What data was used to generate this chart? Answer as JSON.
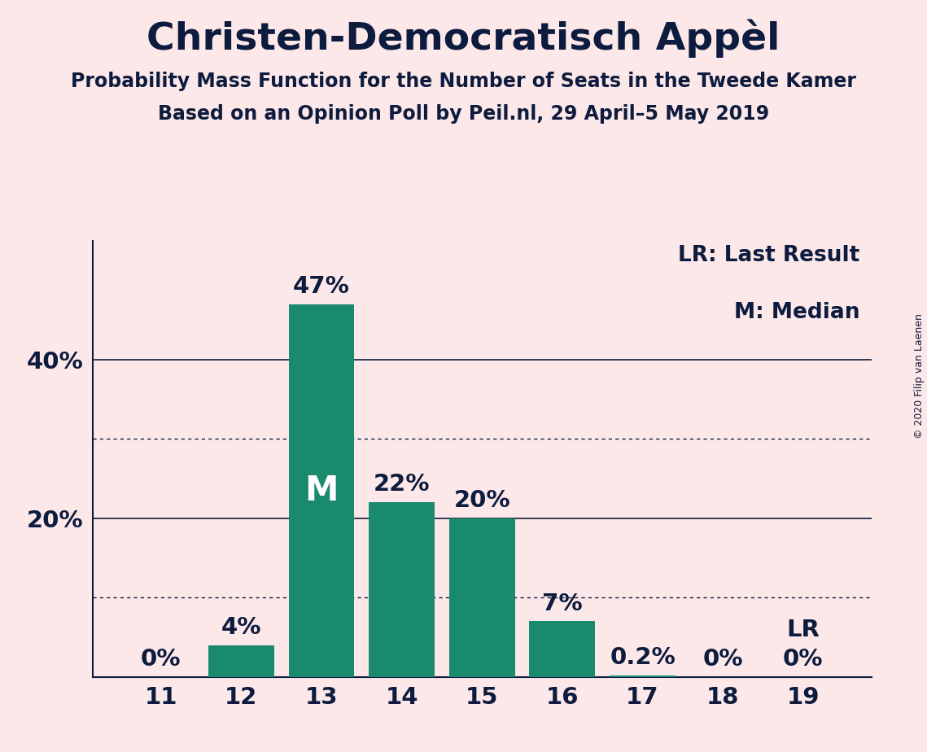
{
  "title": "Christen-Democratisch Appèl",
  "subtitle1": "Probability Mass Function for the Number of Seats in the Tweede Kamer",
  "subtitle2": "Based on an Opinion Poll by Peil.nl, 29 April–5 May 2019",
  "copyright": "© 2020 Filip van Laenen",
  "categories": [
    11,
    12,
    13,
    14,
    15,
    16,
    17,
    18,
    19
  ],
  "values": [
    0,
    4,
    47,
    22,
    20,
    7,
    0.2,
    0,
    0
  ],
  "labels": [
    "0%",
    "4%",
    "47%",
    "22%",
    "20%",
    "7%",
    "0.2%",
    "0%",
    "0%"
  ],
  "bar_color": "#1a8a6e",
  "bg_color": "#fce8e8",
  "last_result_seat": 19,
  "median_seat": 13,
  "median_label": "M",
  "lr_label": "LR",
  "legend_lr": "LR: Last Result",
  "legend_m": "M: Median",
  "solid_lines": [
    20,
    40
  ],
  "dotted_lines": [
    10,
    30
  ],
  "ytick_positions": [
    0,
    20,
    40
  ],
  "ytick_labels": [
    "",
    "20%",
    "40%"
  ],
  "ylim": [
    0,
    55
  ],
  "title_fontsize": 34,
  "subtitle_fontsize": 17,
  "tick_fontsize": 21,
  "label_fontsize": 21,
  "legend_fontsize": 19,
  "copyright_fontsize": 9,
  "text_color": "#0d1b3e"
}
